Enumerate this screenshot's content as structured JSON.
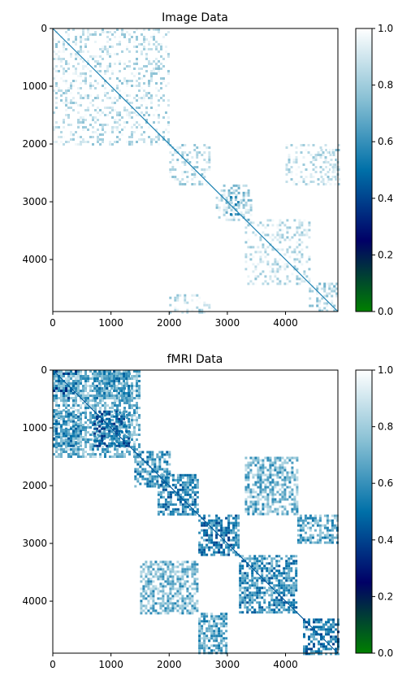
{
  "chart_data": [
    {
      "type": "heatmap",
      "title": "Image Data",
      "xlim": [
        0,
        4900
      ],
      "ylim": [
        0,
        4900
      ],
      "y_inverted": true,
      "xticks": [
        0,
        1000,
        2000,
        3000,
        4000
      ],
      "yticks": [
        0,
        1000,
        2000,
        3000,
        4000
      ],
      "colorbar": {
        "range": [
          0.0,
          1.0
        ],
        "ticks": [
          "0.0",
          "0.2",
          "0.4",
          "0.6",
          "0.8",
          "1.0"
        ]
      },
      "colormap": [
        "#008000",
        "#000066",
        "#0070a8",
        "#88c0d4",
        "#ffffff"
      ],
      "background_value": 1.0,
      "diagonal_value": 0.55,
      "blocks": [
        {
          "x": [
            0,
            2000
          ],
          "y": [
            0,
            2000
          ],
          "value": 0.93
        },
        {
          "x": [
            2000,
            2700
          ],
          "y": [
            2000,
            2700
          ],
          "value": 0.9
        },
        {
          "x": [
            2000,
            2700
          ],
          "y": [
            4600,
            4900
          ],
          "value": 0.9
        },
        {
          "x": [
            4600,
            4900
          ],
          "y": [
            2000,
            2700
          ],
          "value": 0.9
        },
        {
          "x": [
            2800,
            3400
          ],
          "y": [
            2700,
            3300
          ],
          "value": 0.85
        },
        {
          "x": [
            3000,
            3200
          ],
          "y": [
            2900,
            3200
          ],
          "value": 0.7
        },
        {
          "x": [
            3300,
            4400
          ],
          "y": [
            3300,
            4400
          ],
          "value": 0.93
        },
        {
          "x": [
            4000,
            4900
          ],
          "y": [
            2000,
            2700
          ],
          "value": 0.94
        },
        {
          "x": [
            4400,
            4900
          ],
          "y": [
            4400,
            4900
          ],
          "value": 0.88
        }
      ]
    },
    {
      "type": "heatmap",
      "title": "fMRI Data",
      "xlim": [
        0,
        4900
      ],
      "ylim": [
        0,
        4900
      ],
      "y_inverted": true,
      "xticks": [
        0,
        1000,
        2000,
        3000,
        4000
      ],
      "yticks": [
        0,
        1000,
        2000,
        3000,
        4000
      ],
      "colorbar": {
        "range": [
          0.0,
          1.0
        ],
        "ticks": [
          "0.0",
          "0.2",
          "0.4",
          "0.6",
          "0.8",
          "1.0"
        ]
      },
      "colormap": [
        "#008000",
        "#000066",
        "#0070a8",
        "#88c0d4",
        "#ffffff"
      ],
      "background_value": 1.0,
      "diagonal_value": 0.45,
      "blocks": [
        {
          "x": [
            0,
            500
          ],
          "y": [
            0,
            500
          ],
          "value": 0.5
        },
        {
          "x": [
            0,
            1500
          ],
          "y": [
            0,
            1500
          ],
          "value": 0.72
        },
        {
          "x": [
            700,
            1300
          ],
          "y": [
            700,
            1300
          ],
          "value": 0.5
        },
        {
          "x": [
            0,
            500
          ],
          "y": [
            700,
            1300
          ],
          "value": 0.62
        },
        {
          "x": [
            700,
            1300
          ],
          "y": [
            0,
            500
          ],
          "value": 0.62
        },
        {
          "x": [
            1400,
            2000
          ],
          "y": [
            1400,
            2000
          ],
          "value": 0.62
        },
        {
          "x": [
            1800,
            2500
          ],
          "y": [
            1800,
            2500
          ],
          "value": 0.6
        },
        {
          "x": [
            1500,
            2500
          ],
          "y": [
            3300,
            4200
          ],
          "value": 0.72
        },
        {
          "x": [
            3300,
            4200
          ],
          "y": [
            1500,
            2500
          ],
          "value": 0.72
        },
        {
          "x": [
            2500,
            3200
          ],
          "y": [
            2500,
            3200
          ],
          "value": 0.55
        },
        {
          "x": [
            3200,
            4200
          ],
          "y": [
            3200,
            4200
          ],
          "value": 0.6
        },
        {
          "x": [
            2500,
            3000
          ],
          "y": [
            4200,
            4900
          ],
          "value": 0.68
        },
        {
          "x": [
            4200,
            4900
          ],
          "y": [
            2500,
            3000
          ],
          "value": 0.68
        },
        {
          "x": [
            4300,
            4900
          ],
          "y": [
            4300,
            4900
          ],
          "value": 0.55
        }
      ]
    }
  ]
}
